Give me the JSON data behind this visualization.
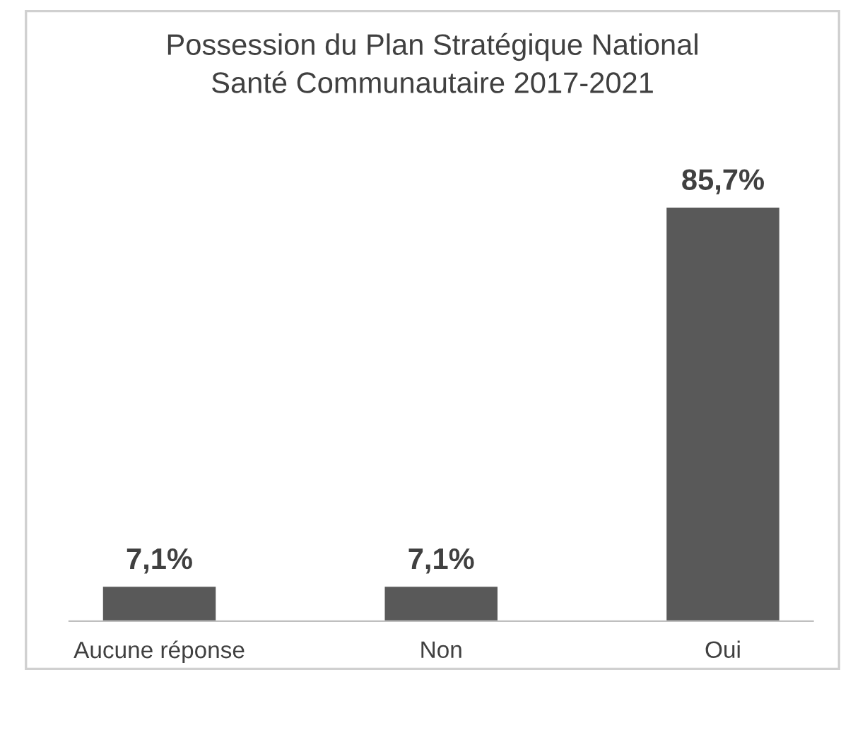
{
  "chart_data": {
    "type": "bar",
    "title": "Possession du Plan Stratégique National\nSanté Communautaire 2017-2021",
    "categories": [
      "Aucune réponse",
      "Non",
      "Oui"
    ],
    "values": [
      7.1,
      7.1,
      85.7
    ],
    "value_labels": [
      "7,1%",
      "7,1%",
      "85,7%"
    ],
    "color": "#595959",
    "grid": false,
    "legend": false
  }
}
